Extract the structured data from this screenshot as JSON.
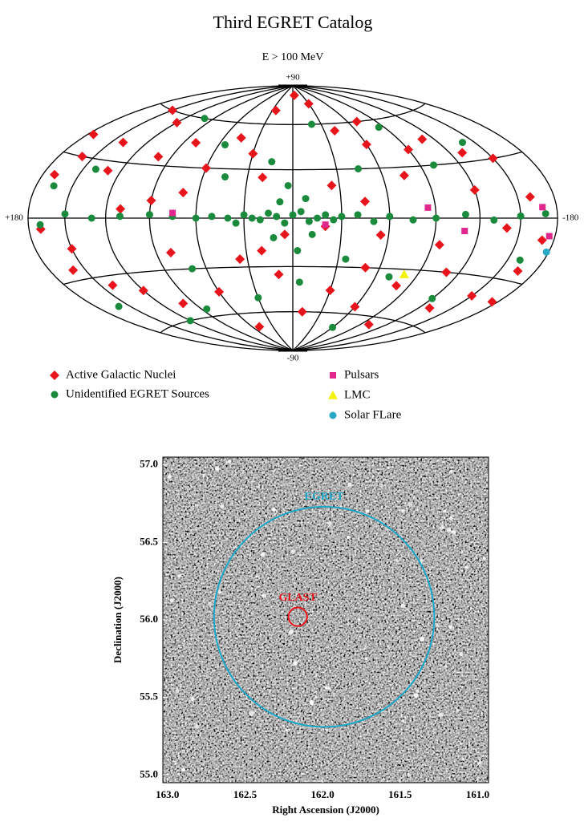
{
  "chart_data": [
    {
      "type": "sky-map",
      "title": "Third EGRET Catalog",
      "subtitle": "E > 100 MeV",
      "xticks": [
        {
          "value": 180,
          "label": "+180"
        },
        {
          "value": -180,
          "label": "-180"
        }
      ],
      "yticks": [
        {
          "value": -90,
          "label": "-90"
        },
        {
          "value": 90,
          "label": "+90"
        }
      ],
      "meridians": [
        150,
        120,
        90,
        60,
        30,
        0,
        -30,
        -60,
        -90,
        -120,
        -150
      ],
      "parallels": [
        -60,
        -30,
        0,
        30,
        60
      ],
      "series": [
        {
          "name": "Active Galactic Nuclei",
          "color": "#e8141c",
          "marker": "diamond",
          "x": [
            -5,
            25,
            -30,
            150,
            120,
            140,
            160,
            170,
            130,
            100,
            80,
            60,
            45,
            30,
            -40,
            -60,
            -70,
            -90,
            -110,
            -130,
            -150,
            -160,
            -170,
            -165,
            -150,
            -130,
            -110,
            -95,
            -80,
            -60,
            -50,
            -30,
            -10,
            10,
            20,
            5,
            -20,
            35,
            60,
            80,
            100,
            120,
            140,
            160,
            170,
            110,
            90,
            70,
            20,
            -25,
            -45,
            -75,
            -120,
            -140,
            -100,
            50,
            -175,
            175,
            150,
            -55
          ],
          "y": [
            82,
            70,
            75,
            60,
            55,
            40,
            30,
            20,
            25,
            35,
            45,
            30,
            50,
            40,
            55,
            45,
            60,
            40,
            45,
            35,
            30,
            10,
            -10,
            -25,
            -40,
            -50,
            -30,
            -15,
            -40,
            -55,
            -30,
            -45,
            -60,
            -35,
            -20,
            -10,
            -5,
            -25,
            -45,
            -20,
            -50,
            -40,
            -35,
            -25,
            -5,
            5,
            10,
            15,
            25,
            20,
            10,
            25,
            15,
            -5,
            -65,
            -70,
            -40,
            40,
            -15,
            -10
          ]
        },
        {
          "name": "Unidentified EGRET Sources",
          "color": "#1a8a3c",
          "marker": "circle",
          "x": [
            0,
            5,
            -5,
            10,
            -10,
            15,
            -15,
            20,
            -20,
            25,
            -25,
            30,
            -30,
            35,
            8,
            -8,
            12,
            -12,
            3,
            -3,
            40,
            -40,
            50,
            -50,
            60,
            -60,
            75,
            -75,
            90,
            -90,
            110,
            -110,
            130,
            -130,
            150,
            -150,
            170,
            -170,
            45,
            -45,
            70,
            -70,
            100,
            -20,
            160,
            -140,
            120,
            -60,
            30,
            -100,
            140,
            -35,
            55,
            -85,
            15,
            -5,
            85,
            -120,
            165,
            -160
          ],
          "y": [
            2,
            -3,
            4,
            1,
            -2,
            3,
            0,
            -1,
            2,
            0,
            -1,
            2,
            1,
            -3,
            10,
            12,
            -12,
            -10,
            20,
            -20,
            0,
            2,
            1,
            -2,
            0,
            1,
            1,
            -1,
            2,
            0,
            1,
            2,
            0,
            -1,
            2,
            1,
            -3,
            2,
            25,
            30,
            -30,
            -35,
            60,
            60,
            -45,
            40,
            -60,
            -70,
            -50,
            30,
            25,
            -25,
            45,
            55,
            35,
            -40,
            -55,
            -45,
            15,
            -20
          ]
        },
        {
          "name": "Pulsars",
          "color": "#e0288c",
          "marker": "square",
          "x": [
            75,
            -20,
            -85,
            -110,
            -168,
            -175
          ],
          "y": [
            3,
            -4,
            6,
            -7,
            5,
            -8
          ]
        },
        {
          "name": "LMC",
          "color": "#f2f20a",
          "marker": "triangle",
          "x": [
            -80
          ],
          "y": [
            -33
          ]
        },
        {
          "name": "Solar FLare",
          "color": "#2aa9c7",
          "marker": "circle",
          "x": [
            -178
          ],
          "y": [
            -15
          ]
        }
      ]
    },
    {
      "type": "image",
      "xlabel": "Right Ascension (J2000)",
      "ylabel": "Declination (J2000)",
      "xlim": [
        163.03,
        160.93
      ],
      "ylim": [
        54.95,
        57.05
      ],
      "xticks": [
        {
          "value": 163,
          "label": "163.0"
        },
        162.5,
        {
          "value": 162,
          "label": "162.0"
        },
        161.5,
        {
          "value": 161,
          "label": "161.0"
        }
      ],
      "yticks": [
        {
          "value": 55,
          "label": "55.0"
        },
        55.5,
        {
          "value": 56,
          "label": "56.0"
        },
        56.5,
        {
          "value": 57,
          "label": "57.0"
        }
      ],
      "circles": [
        {
          "name": "EGRET",
          "color": "#1aa7c9",
          "x": 161.99,
          "y": 56.02,
          "r": 0.71
        },
        {
          "name": "GLAST",
          "color": "#e8141c",
          "x": 162.16,
          "y": 56.02,
          "r": 0.06
        }
      ]
    }
  ]
}
